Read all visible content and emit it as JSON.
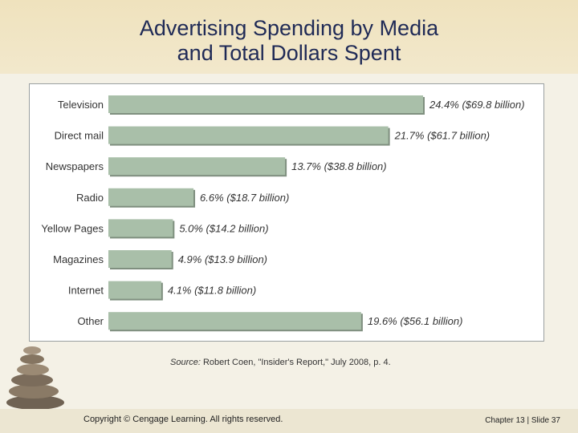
{
  "header": {
    "title_line1": "Advertising Spending by Media",
    "title_line2": "and Total Dollars Spent"
  },
  "chart_data": {
    "type": "bar",
    "orientation": "horizontal",
    "categories": [
      "Television",
      "Direct mail",
      "Newspapers",
      "Radio",
      "Yellow Pages",
      "Magazines",
      "Internet",
      "Other"
    ],
    "values": [
      24.4,
      21.7,
      13.7,
      6.6,
      5.0,
      4.9,
      4.1,
      19.6
    ],
    "value_labels": [
      "24.4% ($69.8 billion)",
      "21.7% ($61.7 billion)",
      "13.7% ($38.8 billion)",
      "6.6% ($18.7 billion)",
      "5.0% ($14.2 billion)",
      "4.9% ($13.9 billion)",
      "4.1% ($11.8 billion)",
      "19.6% ($56.1 billion)"
    ],
    "title": "",
    "xlabel": "",
    "ylabel": "",
    "xlim": [
      0,
      24.4
    ],
    "grid": false,
    "bar_color": "#a9bfa9"
  },
  "source": {
    "label": "Source:",
    "text": "Robert Coen, \"Insider's Report,\" July 2008, p. 4."
  },
  "footer": {
    "copyright": "Copyright © Cengage Learning. All rights reserved.",
    "slide_info": "Chapter 13 | Slide 37"
  }
}
